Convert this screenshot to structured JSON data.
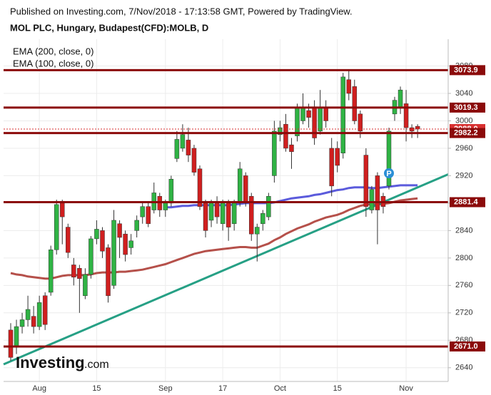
{
  "header": {
    "published": "Published on Investing.com, 7/Nov/2018 - 17:13:58 GMT, Powered by TradingView.",
    "instrument": "MOL PLC, Hungary, Budapest(CFD):MOLB, D"
  },
  "logo": {
    "name": "Investing",
    "suffix": ".com"
  },
  "chart_data": {
    "type": "candlestick",
    "categories": [
      null,
      null,
      null,
      null,
      null,
      "Aug",
      null,
      null,
      null,
      null,
      null,
      null,
      null,
      null,
      null,
      "15",
      null,
      null,
      null,
      null,
      null,
      null,
      null,
      null,
      null,
      null,
      null,
      "Sep",
      null,
      null,
      null,
      null,
      null,
      null,
      null,
      null,
      null,
      "17",
      null,
      null,
      null,
      null,
      null,
      null,
      null,
      null,
      null,
      "Oct",
      null,
      null,
      null,
      null,
      null,
      null,
      null,
      null,
      null,
      "15",
      null,
      null,
      null,
      null,
      null,
      null,
      null,
      null,
      null,
      null,
      null,
      "Nov",
      null,
      null
    ],
    "open": [
      2695,
      2670,
      2700,
      2710,
      2715,
      2700,
      2745,
      2750,
      2812,
      2880,
      2845,
      2790,
      2785,
      2745,
      2776,
      2828,
      2840,
      2815,
      2760,
      2850,
      2835,
      2815,
      2840,
      2860,
      2875,
      2870,
      2890,
      2870,
      2880,
      2945,
      2960,
      2972,
      2960,
      2930,
      2880,
      2855,
      2880,
      2850,
      2880,
      2850,
      2880,
      2920,
      2890,
      2835,
      2850,
      2860,
      2920,
      2980,
      2995,
      2965,
      2978,
      3000,
      3015,
      3020,
      2985,
      3020,
      2960,
      2960,
      2953,
      3060,
      3050,
      3010,
      2950,
      2870,
      2920,
      2890,
      2905,
      3010,
      3020,
      3025,
      2990,
      2992
    ],
    "high": [
      2705,
      2710,
      2720,
      2745,
      2730,
      2745,
      2750,
      2818,
      2885,
      2885,
      2850,
      2800,
      2790,
      2785,
      2832,
      2855,
      2845,
      2820,
      2870,
      2855,
      2840,
      2835,
      2862,
      2880,
      2880,
      2910,
      2895,
      2885,
      2920,
      2985,
      2995,
      2990,
      2965,
      2935,
      2885,
      2885,
      2890,
      2885,
      2885,
      2885,
      2940,
      2925,
      2895,
      2850,
      2870,
      2895,
      3000,
      3000,
      3010,
      2975,
      3025,
      3040,
      3025,
      3030,
      3045,
      3030,
      2975,
      2970,
      3070,
      3075,
      3060,
      3015,
      2960,
      2905,
      2925,
      2895,
      2990,
      3035,
      3050,
      3045,
      2995,
      2995
    ],
    "low": [
      2650,
      2660,
      2690,
      2700,
      2690,
      2695,
      2695,
      2745,
      2805,
      2820,
      2800,
      2760,
      2720,
      2740,
      2770,
      2820,
      2800,
      2735,
      2755,
      2800,
      2795,
      2805,
      2830,
      2850,
      2845,
      2865,
      2860,
      2860,
      2875,
      2940,
      2955,
      2940,
      2920,
      2870,
      2830,
      2845,
      2850,
      2840,
      2825,
      2840,
      2875,
      2875,
      2825,
      2795,
      2840,
      2855,
      2910,
      2970,
      2955,
      2930,
      2970,
      2995,
      2990,
      2965,
      2980,
      2990,
      2890,
      2925,
      2945,
      3030,
      2995,
      2975,
      2860,
      2865,
      2820,
      2865,
      2900,
      3000,
      3010,
      2970,
      2975,
      2975
    ],
    "close": [
      2655,
      2700,
      2710,
      2725,
      2700,
      2735,
      2703,
      2812,
      2878,
      2860,
      2808,
      2772,
      2770,
      2776,
      2828,
      2842,
      2810,
      2745,
      2855,
      2830,
      2805,
      2825,
      2855,
      2875,
      2850,
      2895,
      2870,
      2880,
      2915,
      2973,
      2980,
      2950,
      2925,
      2875,
      2840,
      2880,
      2860,
      2880,
      2845,
      2880,
      2930,
      2880,
      2835,
      2845,
      2865,
      2890,
      2985,
      2990,
      2960,
      2955,
      3020,
      3020,
      3005,
      2975,
      3020,
      3000,
      2905,
      2935,
      3064,
      3040,
      3000,
      2985,
      2875,
      2900,
      2870,
      2875,
      2985,
      3030,
      3045,
      2990,
      2985,
      2988
    ],
    "up_color": "#2fb344",
    "down_color": "#d01f1f",
    "series": [
      {
        "name": "EMA (200, close, 0)",
        "color": "#b5504a",
        "values": [
          2778,
          2776,
          2775,
          2773,
          2772,
          2771,
          2770,
          2770,
          2772,
          2774,
          2775,
          2775,
          2775,
          2775,
          2776,
          2778,
          2779,
          2779,
          2779,
          2780,
          2780,
          2781,
          2782,
          2783,
          2785,
          2787,
          2789,
          2791,
          2794,
          2797,
          2800,
          2803,
          2806,
          2808,
          2810,
          2811,
          2812,
          2813,
          2814,
          2815,
          2816,
          2816,
          2815,
          2815,
          2818,
          2821,
          2826,
          2830,
          2835,
          2839,
          2843,
          2846,
          2849,
          2853,
          2856,
          2859,
          2861,
          2863,
          2866,
          2870,
          2873,
          2876,
          2878,
          2878,
          2878,
          2879,
          2880,
          2882,
          2884,
          2885,
          2886,
          2887
        ]
      },
      {
        "name": "EMA (100, close, 0)",
        "color": "#5b5bdc",
        "values": [
          null,
          null,
          null,
          null,
          null,
          null,
          null,
          null,
          null,
          null,
          null,
          null,
          null,
          null,
          null,
          null,
          null,
          null,
          null,
          null,
          null,
          null,
          null,
          null,
          null,
          null,
          null,
          2874,
          2874,
          2875,
          2876,
          2876,
          2877,
          2877,
          2877,
          2877,
          2877,
          2877,
          2877,
          2878,
          2879,
          2880,
          2880,
          2880,
          2880,
          2880,
          2881,
          2883,
          2885,
          2887,
          2888,
          2889,
          2890,
          2892,
          2893,
          2895,
          2897,
          2899,
          2900,
          2902,
          2903,
          2903,
          2903,
          2902,
          2902,
          2903,
          2904,
          2905,
          2906,
          2906,
          2906,
          2906
        ]
      }
    ],
    "levels": [
      3073.9,
      3019.3,
      {
        "value": 2988.0,
        "label": "2988.0"
      },
      2982.2,
      2881.4,
      {
        "value": 2671.0,
        "label": "2671.0"
      }
    ],
    "current_level_color": "#d83030",
    "level_color": "#8b0a0a",
    "trendline": {
      "start": 2645,
      "end": 2922,
      "color": "#26a085"
    },
    "ylim": [
      2620,
      3119
    ],
    "yticks": [
      2640,
      2680,
      2720,
      2760,
      2800,
      2840,
      2880,
      2920,
      2960,
      3000,
      3040,
      3080
    ],
    "grid": true
  }
}
